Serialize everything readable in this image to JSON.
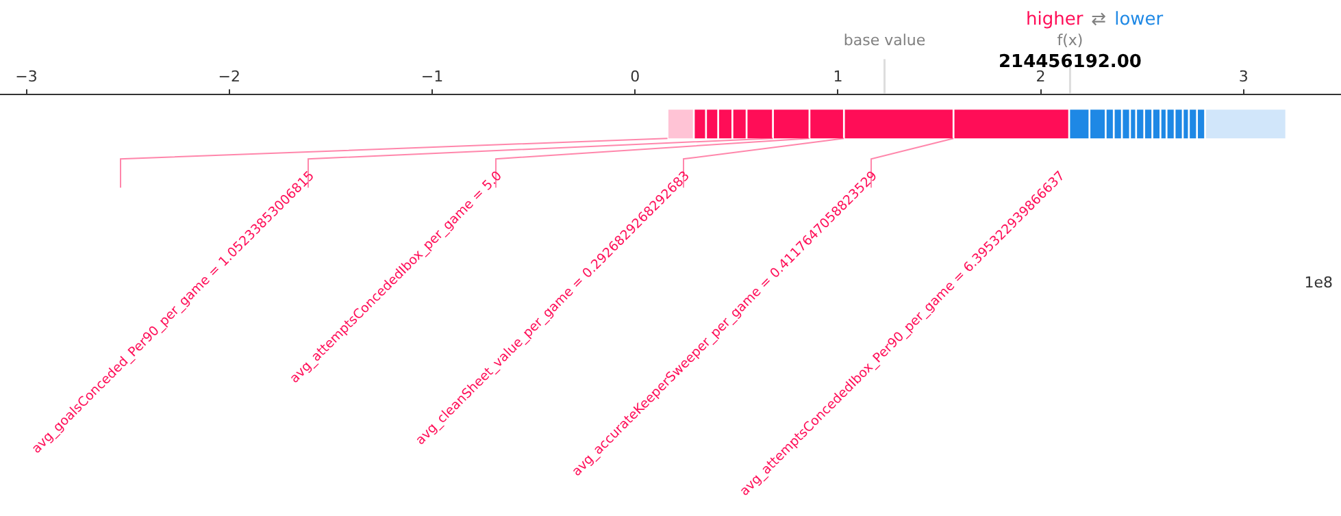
{
  "chart_data": {
    "type": "bar",
    "orientation": "horizontal",
    "categories": [
      null
    ],
    "xlim": [
      -3.13,
      3.48
    ],
    "xticks": [
      {
        "value": -3,
        "label": "−3"
      },
      {
        "value": -2,
        "label": "−2"
      },
      {
        "value": -1,
        "label": "−1"
      },
      0,
      1,
      2,
      3
    ],
    "series": [
      {
        "color": "#ffc3d5",
        "values": [
          0.13
        ],
        "base": [
          0.16
        ]
      },
      {
        "color": "#ff0d57",
        "values": [
          0.06
        ],
        "base": [
          0.29
        ]
      },
      {
        "color": "#ff0d57",
        "values": [
          0.06
        ],
        "base": [
          0.35
        ]
      },
      {
        "color": "#ff0d57",
        "values": [
          0.07
        ],
        "base": [
          0.41
        ]
      },
      {
        "color": "#ff0d57",
        "values": [
          0.07
        ],
        "base": [
          0.48
        ]
      },
      {
        "color": "#ff0d57",
        "values": [
          0.13
        ],
        "base": [
          0.55
        ]
      },
      {
        "color": "#ff0d57",
        "values": [
          0.18
        ],
        "base": [
          0.68
        ]
      },
      {
        "color": "#ff0d57",
        "values": [
          0.17
        ],
        "base": [
          0.86
        ]
      },
      {
        "color": "#ff0d57",
        "values": [
          0.54
        ],
        "base": [
          1.03
        ]
      },
      {
        "color": "#ff0d57",
        "values": [
          0.57
        ],
        "base": [
          1.57
        ]
      },
      {
        "color": "#1e88e5",
        "values": [
          0.1
        ],
        "base": [
          2.14
        ]
      },
      {
        "color": "#1e88e5",
        "values": [
          0.08
        ],
        "base": [
          2.24
        ]
      },
      {
        "color": "#1e88e5",
        "values": [
          0.04
        ],
        "base": [
          2.32
        ]
      },
      {
        "color": "#1e88e5",
        "values": [
          0.04
        ],
        "base": [
          2.36
        ]
      },
      {
        "color": "#1e88e5",
        "values": [
          0.04
        ],
        "base": [
          2.4
        ]
      },
      {
        "color": "#1e88e5",
        "values": [
          0.03
        ],
        "base": [
          2.44
        ]
      },
      {
        "color": "#1e88e5",
        "values": [
          0.04
        ],
        "base": [
          2.47
        ]
      },
      {
        "color": "#1e88e5",
        "values": [
          0.04
        ],
        "base": [
          2.51
        ]
      },
      {
        "color": "#1e88e5",
        "values": [
          0.04
        ],
        "base": [
          2.55
        ]
      },
      {
        "color": "#1e88e5",
        "values": [
          0.03
        ],
        "base": [
          2.59
        ]
      },
      {
        "color": "#1e88e5",
        "values": [
          0.04
        ],
        "base": [
          2.62
        ]
      },
      {
        "color": "#1e88e5",
        "values": [
          0.04
        ],
        "base": [
          2.66
        ]
      },
      {
        "color": "#1e88e5",
        "values": [
          0.03
        ],
        "base": [
          2.7
        ]
      },
      {
        "color": "#1e88e5",
        "values": [
          0.04
        ],
        "base": [
          2.73
        ]
      },
      {
        "color": "#1e88e5",
        "values": [
          0.04
        ],
        "base": [
          2.77
        ]
      },
      {
        "color": "#d1e6fa",
        "values": [
          0.4
        ],
        "base": [
          2.81
        ]
      }
    ],
    "ref_lines": [
      {
        "axis": "x",
        "value": 1.23,
        "label": "base value",
        "color": "#dddddd"
      },
      {
        "axis": "x",
        "value": 2.1446,
        "label": "f(x)",
        "color": "#dddddd"
      }
    ],
    "annotations": [
      "higher",
      "⇄",
      "lower",
      "1e8",
      {
        "text": "214456192.00",
        "x": 2.1446
      },
      "avg_goalsConceded_Per90_per_game = 1.05233853006815",
      "avg_attemptsConcededIbox_per_game = 5.0",
      "avg_cleanSheet_value_per_game = 0.2926829268292683",
      "avg_accurateKeeperSweeper_per_game = 0.4117647058823529",
      "avg_attemptsConcededIbox_Per90_per_game = 6.395322939866637"
    ]
  }
}
